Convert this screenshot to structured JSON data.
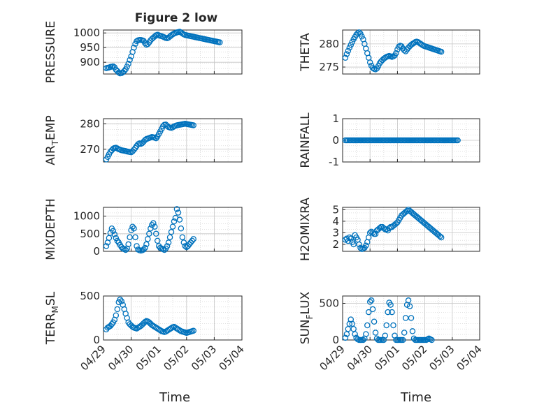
{
  "figure": {
    "title": "Figure 2 low",
    "marker_color": "#0072BD",
    "x_tick_labels": [
      "04/29",
      "04/30",
      "05/01",
      "05/02",
      "05/03",
      "05/04"
    ],
    "x_label": "Time"
  },
  "chart_data": [
    {
      "type": "scatter",
      "ylabel": "PRESSURE",
      "ylim": [
        860,
        1010
      ],
      "yticks": [
        900,
        950,
        1000
      ],
      "xlim": [
        0,
        5
      ],
      "grid": true,
      "x": [
        0.1,
        0.15,
        0.2,
        0.25,
        0.3,
        0.35,
        0.4,
        0.45,
        0.5,
        0.55,
        0.6,
        0.65,
        0.7,
        0.75,
        0.8,
        0.85,
        0.9,
        0.95,
        1.0,
        1.05,
        1.1,
        1.15,
        1.2,
        1.25,
        1.3,
        1.35,
        1.4,
        1.45,
        1.5,
        1.55,
        1.6,
        1.65,
        1.7,
        1.75,
        1.8,
        1.85,
        1.9,
        1.95,
        2.0,
        2.05,
        2.1,
        2.15,
        2.2,
        2.25,
        2.3,
        2.35,
        2.4,
        2.45,
        2.5,
        2.55,
        2.6,
        2.65,
        2.7,
        2.75,
        2.8,
        2.85,
        2.9,
        2.95,
        3.0,
        3.05,
        3.1,
        3.15,
        3.2,
        3.25,
        3.3,
        3.35,
        3.4,
        3.45,
        3.5,
        3.55,
        3.6,
        3.65,
        3.7,
        3.75,
        3.8,
        3.85,
        3.9,
        3.95,
        4.0,
        4.05,
        4.1,
        4.15,
        4.2
      ],
      "values": [
        880,
        881,
        882,
        884,
        885,
        886,
        883,
        875,
        870,
        865,
        862,
        863,
        866,
        870,
        876,
        885,
        895,
        908,
        920,
        935,
        950,
        963,
        972,
        975,
        976,
        976,
        975,
        973,
        965,
        960,
        962,
        968,
        975,
        980,
        984,
        988,
        992,
        994,
        992,
        990,
        989,
        987,
        985,
        983,
        982,
        984,
        988,
        992,
        995,
        998,
        1000,
        1002,
        1003,
        1004,
        1002,
        998,
        995,
        993,
        992,
        991,
        990,
        989,
        988,
        987,
        986,
        985,
        984,
        983,
        982,
        981,
        980,
        979,
        978,
        977,
        976,
        975,
        974,
        973,
        972,
        971,
        970,
        969,
        968
      ]
    },
    {
      "type": "scatter",
      "ylabel": "THETA",
      "ylim": [
        273.5,
        283
      ],
      "yticks": [
        275,
        280
      ],
      "xlim": [
        0,
        5
      ],
      "grid": true,
      "x": [
        0.1,
        0.15,
        0.2,
        0.25,
        0.3,
        0.35,
        0.4,
        0.45,
        0.5,
        0.55,
        0.6,
        0.65,
        0.7,
        0.75,
        0.8,
        0.85,
        0.9,
        0.95,
        1.0,
        1.05,
        1.1,
        1.15,
        1.2,
        1.25,
        1.3,
        1.35,
        1.4,
        1.45,
        1.5,
        1.55,
        1.6,
        1.65,
        1.7,
        1.75,
        1.8,
        1.85,
        1.9,
        1.95,
        2.0,
        2.05,
        2.1,
        2.15,
        2.2,
        2.25,
        2.3,
        2.35,
        2.4,
        2.45,
        2.5,
        2.55,
        2.6,
        2.65,
        2.7,
        2.75,
        2.8,
        2.85,
        2.9,
        2.95,
        3.0,
        3.05,
        3.1,
        3.15,
        3.2,
        3.25,
        3.3,
        3.35,
        3.4,
        3.45,
        3.5,
        3.55,
        3.6
      ],
      "values": [
        277,
        277.8,
        278.5,
        279.2,
        279.8,
        280.4,
        281,
        281.5,
        282,
        282.3,
        282.5,
        282.2,
        281.6,
        281,
        280,
        279,
        278,
        277,
        276,
        275.3,
        274.8,
        274.6,
        274.5,
        274.7,
        275.2,
        275.8,
        276.2,
        276.5,
        276.8,
        277,
        277.2,
        277.3,
        277.4,
        277.3,
        277.2,
        277.3,
        277.5,
        278,
        278.8,
        279.4,
        279.6,
        279.5,
        279,
        278.6,
        278.4,
        278.8,
        279.2,
        279.5,
        279.8,
        280,
        280.2,
        280.4,
        280.5,
        280.4,
        280.2,
        280,
        279.8,
        279.6,
        279.5,
        279.4,
        279.3,
        279.2,
        279.1,
        279,
        278.9,
        278.8,
        278.7,
        278.6,
        278.5,
        278.4,
        278.3
      ]
    },
    {
      "type": "scatter",
      "ylabel": "AIR_TEMP",
      "ylim": [
        265,
        282
      ],
      "yticks": [
        270,
        280
      ],
      "xlim": [
        0,
        5
      ],
      "grid": true,
      "x": [
        0.1,
        0.15,
        0.2,
        0.25,
        0.3,
        0.35,
        0.4,
        0.45,
        0.5,
        0.55,
        0.6,
        0.65,
        0.7,
        0.75,
        0.8,
        0.85,
        0.9,
        0.95,
        1.0,
        1.05,
        1.1,
        1.15,
        1.2,
        1.25,
        1.3,
        1.35,
        1.4,
        1.45,
        1.5,
        1.55,
        1.6,
        1.65,
        1.7,
        1.75,
        1.8,
        1.85,
        1.9,
        1.95,
        2.0,
        2.05,
        2.1,
        2.15,
        2.2,
        2.25,
        2.3,
        2.35,
        2.4,
        2.45,
        2.5,
        2.55,
        2.6,
        2.65,
        2.7,
        2.75,
        2.8,
        2.85,
        2.9,
        2.95,
        3.0,
        3.05,
        3.1,
        3.15,
        3.2,
        3.25
      ],
      "values": [
        266,
        267,
        268,
        269,
        269.6,
        270.2,
        270.5,
        270.6,
        270.3,
        270,
        269.8,
        269.6,
        269.5,
        269.4,
        269.3,
        269.1,
        269,
        268.9,
        268.8,
        269.2,
        269.8,
        270.5,
        271.3,
        272,
        272.3,
        272.1,
        272.4,
        273,
        273.6,
        274,
        274.2,
        274.4,
        274.6,
        274.8,
        274.7,
        274.5,
        274.3,
        275,
        276,
        277,
        278,
        279,
        279.6,
        279.7,
        279.2,
        278.7,
        278.5,
        278.4,
        278.6,
        279,
        279.2,
        279.4,
        279.5,
        279.6,
        279.7,
        279.8,
        279.9,
        280,
        279.9,
        279.8,
        279.7,
        279.6,
        279.5,
        279.4
      ]
    },
    {
      "type": "scatter",
      "ylabel": "RAINFALL",
      "ylim": [
        -1,
        1
      ],
      "yticks": [
        -1,
        0,
        1
      ],
      "xlim": [
        0,
        5
      ],
      "grid": true,
      "x_range": [
        0.1,
        4.2
      ],
      "n_points": 83,
      "constant_value": 0
    },
    {
      "type": "scatter",
      "ylabel": "MIXDEPTH",
      "ylim": [
        0,
        1250
      ],
      "yticks": [
        0,
        500,
        1000
      ],
      "xlim": [
        0,
        5
      ],
      "grid": true,
      "x": [
        0.1,
        0.15,
        0.2,
        0.25,
        0.3,
        0.35,
        0.4,
        0.45,
        0.5,
        0.55,
        0.6,
        0.65,
        0.7,
        0.75,
        0.8,
        0.85,
        0.9,
        0.95,
        1.0,
        1.05,
        1.1,
        1.15,
        1.2,
        1.25,
        1.3,
        1.35,
        1.4,
        1.45,
        1.5,
        1.55,
        1.6,
        1.65,
        1.7,
        1.75,
        1.8,
        1.85,
        1.9,
        1.95,
        2.0,
        2.05,
        2.1,
        2.15,
        2.2,
        2.25,
        2.3,
        2.35,
        2.4,
        2.45,
        2.5,
        2.55,
        2.6,
        2.65,
        2.7,
        2.75,
        2.8,
        2.85,
        2.9,
        2.95,
        3.0,
        3.05,
        3.1,
        3.15,
        3.2,
        3.25
      ],
      "values": [
        150,
        250,
        380,
        520,
        650,
        580,
        480,
        380,
        300,
        250,
        180,
        120,
        80,
        60,
        40,
        80,
        200,
        400,
        600,
        700,
        650,
        400,
        150,
        50,
        30,
        20,
        30,
        50,
        100,
        200,
        350,
        500,
        650,
        750,
        800,
        700,
        500,
        300,
        150,
        100,
        80,
        60,
        40,
        80,
        150,
        250,
        400,
        550,
        700,
        850,
        950,
        1200,
        1100,
        900,
        650,
        400,
        250,
        150,
        120,
        150,
        200,
        250,
        300,
        350
      ]
    },
    {
      "type": "scatter",
      "ylabel": "H2OMIXRA",
      "ylim": [
        1.4,
        5.2
      ],
      "yticks": [
        2,
        3,
        4,
        5
      ],
      "xlim": [
        0,
        5
      ],
      "grid": true,
      "x": [
        0.1,
        0.15,
        0.2,
        0.25,
        0.3,
        0.35,
        0.4,
        0.45,
        0.5,
        0.55,
        0.6,
        0.65,
        0.7,
        0.75,
        0.8,
        0.85,
        0.9,
        0.95,
        1.0,
        1.05,
        1.1,
        1.15,
        1.2,
        1.25,
        1.3,
        1.35,
        1.4,
        1.45,
        1.5,
        1.55,
        1.6,
        1.65,
        1.7,
        1.75,
        1.8,
        1.85,
        1.9,
        1.95,
        2.0,
        2.05,
        2.1,
        2.15,
        2.2,
        2.25,
        2.3,
        2.35,
        2.4,
        2.45,
        2.5,
        2.55,
        2.6,
        2.65,
        2.7,
        2.75,
        2.8,
        2.85,
        2.9,
        2.95,
        3.0,
        3.05,
        3.1,
        3.15,
        3.2,
        3.25,
        3.3,
        3.35,
        3.4,
        3.45,
        3.5,
        3.55,
        3.6
      ],
      "values": [
        2.4,
        2.5,
        2.3,
        2.6,
        2.5,
        2.2,
        2.0,
        2.8,
        2.6,
        2.4,
        2.0,
        1.7,
        1.6,
        1.65,
        1.7,
        1.9,
        2.2,
        2.6,
        3.0,
        3.1,
        3.0,
        2.9,
        2.9,
        3.2,
        3.3,
        3.4,
        3.5,
        3.5,
        3.4,
        3.3,
        3.3,
        3.2,
        3.4,
        3.5,
        3.5,
        3.6,
        3.7,
        3.8,
        3.9,
        4.1,
        4.3,
        4.5,
        4.6,
        4.7,
        4.8,
        4.9,
        5.0,
        4.9,
        4.8,
        4.7,
        4.6,
        4.5,
        4.4,
        4.3,
        4.2,
        4.1,
        4.0,
        3.9,
        3.8,
        3.7,
        3.6,
        3.5,
        3.4,
        3.3,
        3.2,
        3.1,
        3.0,
        2.9,
        2.8,
        2.7,
        2.6
      ]
    },
    {
      "type": "scatter",
      "ylabel": "TERR_MSL",
      "ylim": [
        0,
        500
      ],
      "yticks": [
        0,
        500
      ],
      "xlim": [
        0,
        5
      ],
      "grid": true,
      "x": [
        0.1,
        0.15,
        0.2,
        0.25,
        0.3,
        0.35,
        0.4,
        0.45,
        0.5,
        0.55,
        0.6,
        0.65,
        0.7,
        0.75,
        0.8,
        0.85,
        0.9,
        0.95,
        1.0,
        1.05,
        1.1,
        1.15,
        1.2,
        1.25,
        1.3,
        1.35,
        1.4,
        1.45,
        1.5,
        1.55,
        1.6,
        1.65,
        1.7,
        1.75,
        1.8,
        1.85,
        1.9,
        1.95,
        2.0,
        2.05,
        2.1,
        2.15,
        2.2,
        2.25,
        2.3,
        2.35,
        2.4,
        2.45,
        2.5,
        2.55,
        2.6,
        2.65,
        2.7,
        2.75,
        2.8,
        2.85,
        2.9,
        2.95,
        3.0,
        3.05,
        3.1,
        3.15,
        3.2,
        3.25
      ],
      "values": [
        120,
        140,
        150,
        160,
        180,
        200,
        230,
        280,
        350,
        430,
        460,
        440,
        400,
        350,
        300,
        250,
        200,
        180,
        165,
        150,
        140,
        135,
        130,
        140,
        150,
        160,
        175,
        190,
        205,
        215,
        210,
        200,
        185,
        170,
        160,
        150,
        140,
        130,
        120,
        110,
        100,
        95,
        90,
        95,
        105,
        115,
        125,
        135,
        145,
        150,
        140,
        130,
        120,
        110,
        100,
        95,
        90,
        85,
        80,
        85,
        90,
        95,
        100,
        105
      ]
    },
    {
      "type": "scatter",
      "ylabel": "SUN_FLUX",
      "ylim": [
        0,
        600
      ],
      "yticks": [
        0,
        500
      ],
      "xlim": [
        0,
        5
      ],
      "grid": true,
      "x": [
        0.1,
        0.15,
        0.2,
        0.25,
        0.3,
        0.35,
        0.4,
        0.45,
        0.5,
        0.55,
        0.6,
        0.65,
        0.7,
        0.75,
        0.8,
        0.85,
        0.9,
        0.95,
        1.0,
        1.05,
        1.1,
        1.15,
        1.2,
        1.25,
        1.3,
        1.35,
        1.4,
        1.45,
        1.5,
        1.55,
        1.6,
        1.65,
        1.7,
        1.75,
        1.8,
        1.85,
        1.9,
        1.95,
        2.0,
        2.05,
        2.1,
        2.15,
        2.2,
        2.25,
        2.3,
        2.35,
        2.4,
        2.45,
        2.5,
        2.55,
        2.6,
        2.65,
        2.7,
        2.75,
        2.8,
        2.85,
        2.9,
        2.95,
        3.0,
        3.05,
        3.1,
        3.15,
        3.2,
        3.25
      ],
      "values": [
        30,
        80,
        150,
        220,
        280,
        220,
        150,
        80,
        30,
        10,
        0,
        0,
        0,
        0,
        20,
        80,
        200,
        380,
        520,
        540,
        420,
        250,
        100,
        20,
        0,
        0,
        0,
        0,
        0,
        60,
        200,
        380,
        510,
        480,
        380,
        200,
        60,
        0,
        0,
        0,
        0,
        0,
        0,
        100,
        300,
        480,
        540,
        460,
        300,
        120,
        20,
        0,
        0,
        0,
        0,
        0,
        0,
        0,
        0,
        0,
        10,
        20,
        10,
        0
      ]
    }
  ]
}
